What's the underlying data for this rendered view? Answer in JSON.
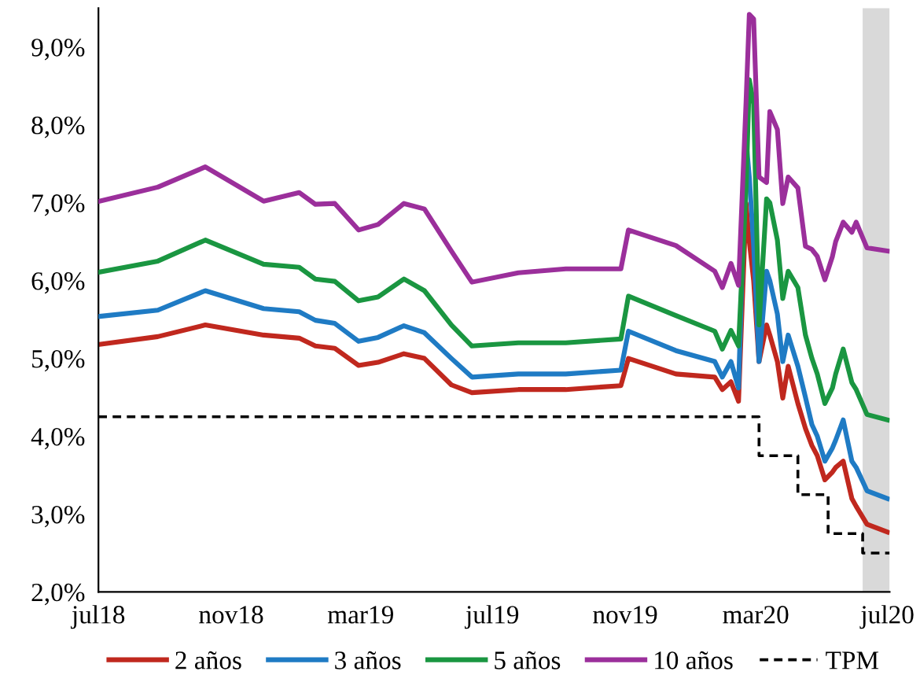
{
  "chart_data": {
    "type": "line",
    "x": [
      "2018-07-02",
      "2018-08-25",
      "2018-10-08",
      "2018-12-01",
      "2019-01-03",
      "2019-01-18",
      "2019-02-05",
      "2019-02-27",
      "2019-03-17",
      "2019-04-10",
      "2019-04-29",
      "2019-05-24",
      "2019-06-12",
      "2019-07-25",
      "2019-09-07",
      "2019-10-28",
      "2019-11-04",
      "2019-12-18",
      "2020-01-23",
      "2020-01-30",
      "2020-02-07",
      "2020-02-14",
      "2020-02-21",
      "2020-02-24",
      "2020-02-28",
      "2020-03-04",
      "2020-03-11",
      "2020-03-14",
      "2020-03-21",
      "2020-03-26",
      "2020-03-31",
      "2020-04-09",
      "2020-04-16",
      "2020-04-22",
      "2020-04-27",
      "2020-05-04",
      "2020-05-11",
      "2020-05-14",
      "2020-05-21",
      "2020-05-29",
      "2020-06-02",
      "2020-06-12",
      "2020-07-01"
    ],
    "series": [
      {
        "name": "2 años",
        "color": "#c0281e",
        "values": [
          5.18,
          5.28,
          5.43,
          5.3,
          5.26,
          5.16,
          5.13,
          4.91,
          4.95,
          5.06,
          5.0,
          4.66,
          4.56,
          4.6,
          4.6,
          4.65,
          5.0,
          4.8,
          4.76,
          4.6,
          4.7,
          4.45,
          6.99,
          6.5,
          6.0,
          4.96,
          5.43,
          5.3,
          4.96,
          4.49,
          4.9,
          4.42,
          4.1,
          3.88,
          3.75,
          3.44,
          3.54,
          3.6,
          3.68,
          3.2,
          3.1,
          2.87,
          2.77
        ]
      },
      {
        "name": "3 años",
        "color": "#1f7bc4",
        "values": [
          5.54,
          5.62,
          5.87,
          5.64,
          5.6,
          5.49,
          5.45,
          5.22,
          5.27,
          5.42,
          5.33,
          5.0,
          4.76,
          4.8,
          4.8,
          4.85,
          5.35,
          5.1,
          4.96,
          4.76,
          4.96,
          4.62,
          7.8,
          7.33,
          6.45,
          4.96,
          6.12,
          6.0,
          5.57,
          4.96,
          5.3,
          4.9,
          4.5,
          4.15,
          4.0,
          3.68,
          3.85,
          3.95,
          4.21,
          3.68,
          3.6,
          3.3,
          3.2
        ]
      },
      {
        "name": "5 años",
        "color": "#1a9641",
        "values": [
          6.11,
          6.25,
          6.52,
          6.21,
          6.17,
          6.02,
          5.99,
          5.74,
          5.79,
          6.02,
          5.87,
          5.43,
          5.16,
          5.2,
          5.2,
          5.25,
          5.8,
          5.55,
          5.35,
          5.12,
          5.36,
          5.16,
          7.2,
          8.58,
          8.27,
          5.43,
          7.05,
          7.0,
          6.52,
          5.77,
          6.12,
          5.91,
          5.3,
          5.0,
          4.8,
          4.42,
          4.62,
          4.8,
          5.12,
          4.69,
          4.6,
          4.28,
          4.21
        ]
      },
      {
        "name": "10 años",
        "color": "#9b2f9b",
        "values": [
          7.02,
          7.2,
          7.46,
          7.02,
          7.13,
          6.98,
          6.99,
          6.65,
          6.72,
          6.99,
          6.92,
          6.38,
          5.98,
          6.1,
          6.15,
          6.15,
          6.65,
          6.45,
          6.12,
          5.91,
          6.22,
          5.94,
          8.3,
          9.42,
          9.36,
          7.33,
          7.26,
          8.17,
          7.94,
          6.99,
          7.33,
          7.19,
          6.44,
          6.4,
          6.31,
          6.01,
          6.31,
          6.5,
          6.75,
          6.62,
          6.75,
          6.42,
          6.38
        ]
      },
      {
        "name": "TPM",
        "type": "step",
        "color": "#000000",
        "line_style": "dashed",
        "x": [
          "2018-07-01",
          "2020-03-04",
          "2020-04-09",
          "2020-05-07",
          "2020-06-08",
          "2020-07-03"
        ],
        "values": [
          4.25,
          3.75,
          3.25,
          2.75,
          2.5,
          2.5
        ]
      }
    ],
    "xlim": [
      "2018-07-01",
      "2020-07-03"
    ],
    "xticks": [
      {
        "value": "2018-07-01",
        "label": "jul18"
      },
      {
        "value": "2018-11-01",
        "label": "nov18"
      },
      {
        "value": "2019-03-01",
        "label": "mar19"
      },
      {
        "value": "2019-07-01",
        "label": "jul19"
      },
      {
        "value": "2019-11-01",
        "label": "nov19"
      },
      {
        "value": "2020-03-01",
        "label": "mar20"
      },
      {
        "value": "2020-07-01",
        "label": "jul20"
      }
    ],
    "ylim": [
      2,
      9.5
    ],
    "yticks": [
      {
        "value": 2,
        "label": "2,0%"
      },
      {
        "value": 3,
        "label": "3,0%"
      },
      {
        "value": 4,
        "label": "4,0%"
      },
      {
        "value": 5,
        "label": "5,0%"
      },
      {
        "value": 6,
        "label": "6,0%"
      },
      {
        "value": 7,
        "label": "7,0%"
      },
      {
        "value": 8,
        "label": "8,0%"
      },
      {
        "value": 9,
        "label": "9,0%"
      }
    ],
    "bands": [
      {
        "axis": "x",
        "from": "2020-06-08",
        "to": "2020-07-03",
        "color": "#d9d9d9"
      }
    ],
    "grid": false,
    "legend": "bottom",
    "marker": "none",
    "line_style": "solid"
  }
}
